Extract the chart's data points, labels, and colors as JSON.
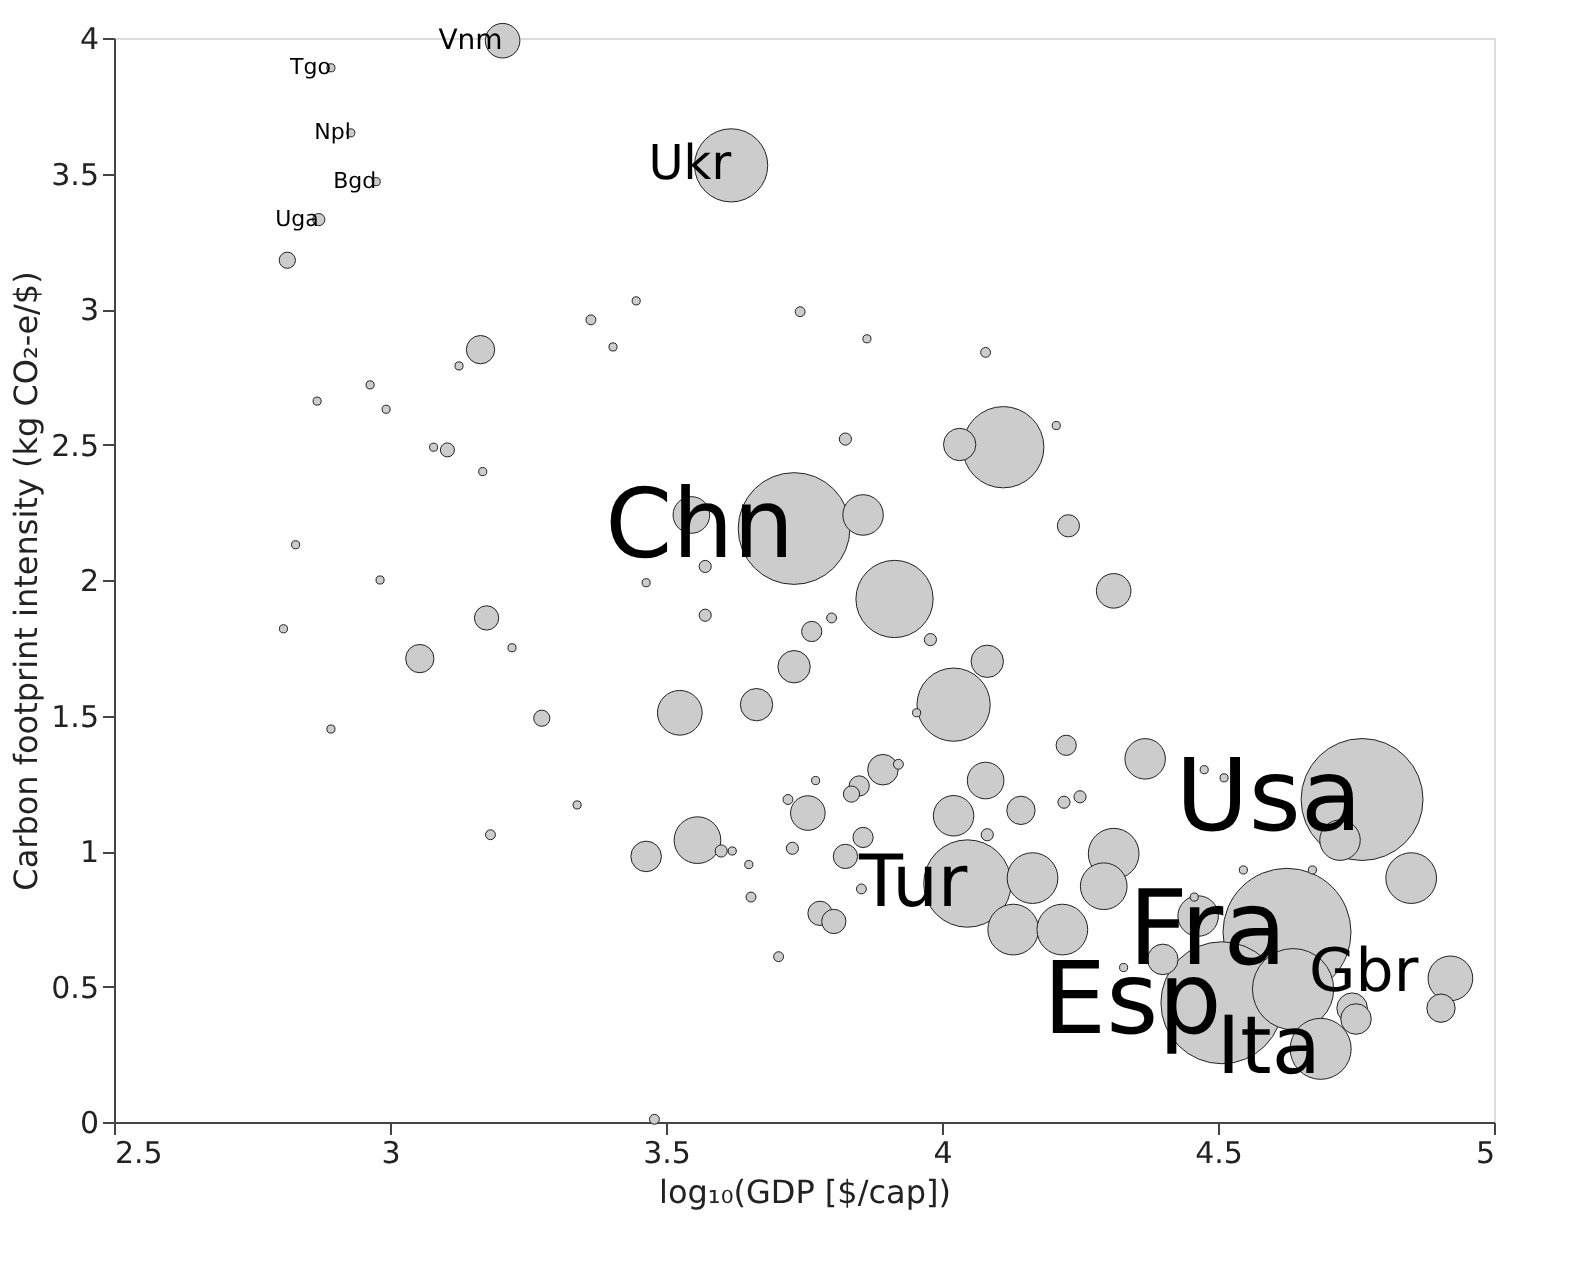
{
  "chart_data": {
    "type": "bubble",
    "xlabel": "log₁₀(GDP [$/cap])",
    "ylabel": "Carbon footprint intensity (kg CO₂-e/$)",
    "xlim": [
      2.5,
      5
    ],
    "ylim": [
      0,
      4
    ],
    "xticks": [
      2.5,
      3,
      3.5,
      4,
      4.5,
      5
    ],
    "yticks": [
      0,
      0.5,
      1,
      1.5,
      2,
      2.5,
      3,
      3.5,
      4
    ],
    "grid": false,
    "series": [
      {
        "color": "#cccccc",
        "x": [
          3.204,
          2.893,
          2.929,
          2.975,
          2.871,
          2.814,
          3.618,
          3.364,
          3.446,
          3.404,
          3.164,
          3.125,
          2.868,
          2.964,
          2.993,
          3.079,
          3.104,
          3.168,
          2.829,
          2.807,
          2.982,
          3.175,
          3.054,
          3.221,
          3.275,
          2.893,
          3.339,
          3.182,
          3.464,
          3.557,
          3.6,
          3.62,
          3.65,
          3.654,
          3.479,
          3.525,
          3.664,
          3.571,
          3.571,
          3.464,
          3.546,
          3.743,
          3.864,
          4.079,
          3.825,
          4.111,
          4.032,
          4.207,
          4.229,
          3.857,
          3.732,
          4.311,
          3.914,
          3.764,
          3.8,
          3.979,
          3.732,
          4.082,
          4.021,
          3.954,
          4.225,
          4.368,
          4.761,
          4.475,
          4.511,
          4.721,
          4.85,
          4.079,
          4.143,
          4.221,
          4.25,
          4.021,
          4.082,
          4.311,
          4.293,
          4.164,
          4.046,
          4.129,
          4.218,
          3.757,
          3.857,
          3.893,
          3.85,
          3.836,
          3.721,
          3.771,
          3.921,
          3.729,
          3.779,
          3.804,
          3.854,
          3.704,
          3.825,
          4.329,
          4.4,
          4.464,
          4.507,
          4.625,
          4.636,
          4.686,
          4.743,
          4.75,
          4.921,
          4.904,
          4.546,
          4.671,
          4.457
        ],
        "values": [
          3.99,
          3.89,
          3.65,
          3.47,
          3.33,
          3.18,
          3.53,
          2.96,
          3.03,
          2.86,
          2.85,
          2.79,
          2.66,
          2.72,
          2.63,
          2.49,
          2.48,
          2.4,
          2.13,
          1.82,
          2.0,
          1.86,
          1.71,
          1.75,
          1.49,
          1.45,
          1.17,
          1.06,
          0.98,
          1.04,
          1.0,
          1.0,
          0.95,
          0.83,
          0.01,
          1.51,
          1.54,
          1.87,
          2.05,
          1.99,
          2.24,
          2.99,
          2.89,
          2.84,
          2.52,
          2.49,
          2.5,
          2.57,
          2.2,
          2.24,
          2.19,
          1.96,
          1.93,
          1.81,
          1.86,
          1.78,
          1.68,
          1.7,
          1.54,
          1.51,
          1.39,
          1.34,
          1.19,
          1.3,
          1.27,
          1.04,
          0.9,
          1.26,
          1.15,
          1.18,
          1.2,
          1.13,
          1.06,
          0.99,
          0.87,
          0.9,
          0.88,
          0.71,
          0.71,
          1.14,
          1.05,
          1.3,
          1.24,
          1.21,
          1.19,
          1.26,
          1.32,
          1.01,
          0.77,
          0.74,
          0.86,
          0.61,
          0.98,
          0.57,
          0.6,
          0.76,
          0.44,
          0.7,
          0.49,
          0.27,
          0.42,
          0.38,
          0.53,
          0.42,
          0.93,
          0.93,
          0.83
        ],
        "sizes": [
          0.073,
          0.004,
          0.004,
          0.004,
          0.009,
          0.016,
          0.327,
          0.006,
          0.004,
          0.004,
          0.049,
          0.004,
          0.004,
          0.004,
          0.004,
          0.004,
          0.012,
          0.004,
          0.004,
          0.004,
          0.004,
          0.036,
          0.049,
          0.004,
          0.016,
          0.004,
          0.004,
          0.006,
          0.057,
          0.133,
          0.009,
          0.004,
          0.004,
          0.006,
          0.006,
          0.122,
          0.064,
          0.009,
          0.009,
          0.004,
          0.082,
          0.006,
          0.004,
          0.006,
          0.009,
          0.403,
          0.064,
          0.004,
          0.03,
          0.1,
          0.762,
          0.073,
          0.364,
          0.025,
          0.006,
          0.009,
          0.064,
          0.064,
          0.327,
          0.004,
          0.025,
          0.1,
          0.907,
          0.004,
          0.004,
          0.1,
          0.157,
          0.082,
          0.049,
          0.009,
          0.009,
          0.1,
          0.009,
          0.157,
          0.133,
          0.157,
          0.466,
          0.157,
          0.157,
          0.073,
          0.025,
          0.057,
          0.025,
          0.016,
          0.006,
          0.004,
          0.006,
          0.009,
          0.036,
          0.036,
          0.006,
          0.006,
          0.036,
          0.004,
          0.057,
          0.1,
          0.907,
          1,
          0.403,
          0.227,
          0.057,
          0.057,
          0.122,
          0.049,
          0.004,
          0.004,
          0.004
        ]
      }
    ],
    "annotations": [
      {
        "text": "Vnm",
        "x": 3.204,
        "y": 3.99
      },
      {
        "text": "Tgo",
        "x": 2.893,
        "y": 3.89
      },
      {
        "text": "Npl",
        "x": 2.929,
        "y": 3.65
      },
      {
        "text": "Bgd",
        "x": 2.975,
        "y": 3.47
      },
      {
        "text": "Uga",
        "x": 2.871,
        "y": 3.33
      },
      {
        "text": "Ukr",
        "x": 3.618,
        "y": 3.53
      },
      {
        "text": "Chn",
        "x": 3.732,
        "y": 2.19
      },
      {
        "text": "Tur",
        "x": 4.046,
        "y": 0.88
      },
      {
        "text": "Usa",
        "x": 4.761,
        "y": 1.19
      },
      {
        "text": "Fra",
        "x": 4.625,
        "y": 0.7
      },
      {
        "text": "Gbr",
        "x": 4.636,
        "y": 0.49
      },
      {
        "text": "Esp",
        "x": 4.507,
        "y": 0.44
      },
      {
        "text": "Ita",
        "x": 4.686,
        "y": 0.27
      }
    ]
  }
}
